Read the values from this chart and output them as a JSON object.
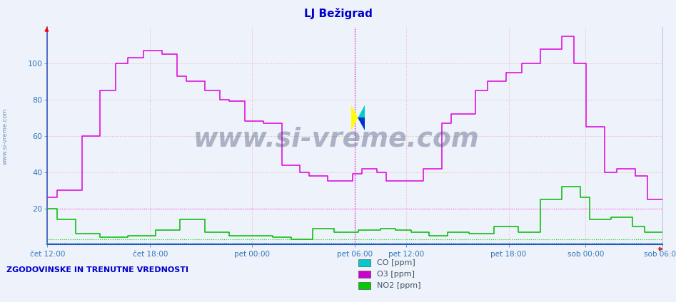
{
  "title": "LJ Bežigrad",
  "title_color": "#0000cc",
  "bg_color": "#eef2fa",
  "plot_bg_color": "#eef2fa",
  "o3_color": "#dd00dd",
  "no2_color": "#00bb00",
  "co_color": "#00cccc",
  "ylim": [
    0,
    120
  ],
  "yticks": [
    20,
    40,
    60,
    80,
    100
  ],
  "xtick_labels": [
    "čet 12:00",
    "čet 18:00",
    "pet 00:00",
    "pet 06:00",
    "pet 12:00",
    "pet 18:00",
    "sob 00:00",
    "sob 06:00"
  ],
  "xtick_pos": [
    0.0,
    0.167,
    0.333,
    0.5,
    0.583,
    0.75,
    0.875,
    1.0
  ],
  "bottom_text": "ZGODOVINSKE IN TRENUTNE VREDNOSTI",
  "watermark": "www.si-vreme.com",
  "legend_labels": [
    "CO [ppm]",
    "O3 [ppm]",
    "NO2 [ppm]"
  ],
  "legend_colors": [
    "#00cccc",
    "#cc00cc",
    "#00cc00"
  ],
  "o3_x": [
    0,
    0.015,
    0.016,
    0.055,
    0.056,
    0.085,
    0.086,
    0.11,
    0.111,
    0.13,
    0.131,
    0.155,
    0.156,
    0.185,
    0.186,
    0.21,
    0.211,
    0.225,
    0.226,
    0.255,
    0.256,
    0.28,
    0.281,
    0.295,
    0.296,
    0.32,
    0.321,
    0.35,
    0.351,
    0.38,
    0.381,
    0.41,
    0.411,
    0.425,
    0.426,
    0.455,
    0.456,
    0.495,
    0.496,
    0.51,
    0.511,
    0.535,
    0.536,
    0.55,
    0.551,
    0.575,
    0.576,
    0.61,
    0.611,
    0.64,
    0.641,
    0.655,
    0.656,
    0.695,
    0.696,
    0.715,
    0.716,
    0.745,
    0.746,
    0.77,
    0.771,
    0.8,
    0.801,
    0.835,
    0.836,
    0.855,
    0.856,
    0.875,
    0.876,
    0.905,
    0.906,
    0.925,
    0.926,
    0.955,
    0.956,
    0.975,
    0.976,
    1.0
  ],
  "o3_y": [
    26,
    26,
    30,
    30,
    60,
    60,
    85,
    85,
    100,
    100,
    103,
    103,
    107,
    107,
    105,
    105,
    93,
    93,
    90,
    90,
    85,
    85,
    80,
    80,
    79,
    79,
    68,
    68,
    67,
    67,
    44,
    44,
    40,
    40,
    38,
    38,
    35,
    35,
    39,
    39,
    42,
    42,
    40,
    40,
    35,
    35,
    35,
    35,
    42,
    42,
    67,
    67,
    72,
    72,
    85,
    85,
    90,
    90,
    95,
    95,
    100,
    100,
    108,
    108,
    115,
    115,
    100,
    100,
    65,
    65,
    40,
    40,
    42,
    42,
    38,
    38,
    25,
    25
  ],
  "no2_x": [
    0,
    0.015,
    0.016,
    0.045,
    0.046,
    0.085,
    0.086,
    0.13,
    0.131,
    0.175,
    0.176,
    0.215,
    0.216,
    0.255,
    0.256,
    0.295,
    0.296,
    0.335,
    0.336,
    0.365,
    0.366,
    0.395,
    0.396,
    0.43,
    0.431,
    0.465,
    0.466,
    0.505,
    0.506,
    0.54,
    0.541,
    0.565,
    0.566,
    0.59,
    0.591,
    0.62,
    0.621,
    0.65,
    0.651,
    0.685,
    0.686,
    0.725,
    0.726,
    0.765,
    0.766,
    0.8,
    0.801,
    0.835,
    0.836,
    0.865,
    0.866,
    0.88,
    0.881,
    0.915,
    0.916,
    0.95,
    0.951,
    0.97,
    0.971,
    1.0
  ],
  "no2_y": [
    20,
    20,
    14,
    14,
    6,
    6,
    4,
    4,
    5,
    5,
    8,
    8,
    14,
    14,
    7,
    7,
    5,
    5,
    5,
    5,
    4,
    4,
    3,
    3,
    9,
    9,
    7,
    7,
    8,
    8,
    9,
    9,
    8,
    8,
    7,
    7,
    5,
    5,
    7,
    7,
    6,
    6,
    10,
    10,
    7,
    7,
    25,
    25,
    32,
    32,
    26,
    26,
    14,
    14,
    15,
    15,
    10,
    10,
    7,
    7
  ]
}
